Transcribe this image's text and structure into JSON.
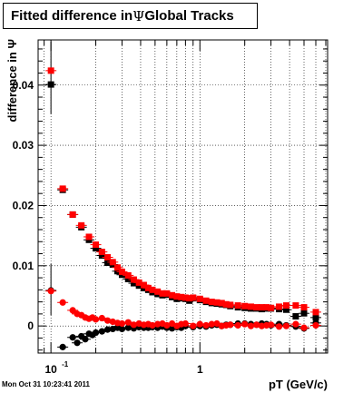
{
  "title": {
    "prefix": "Fitted difference in",
    "symbol": "Ψ",
    "suffix": "Global Tracks"
  },
  "timestamp": "Mon Oct 31 10:23:41 2011",
  "colors": {
    "series_black": "#000000",
    "series_red": "#ff0000",
    "grid": "#000000"
  },
  "chart_data": {
    "type": "scatter",
    "xlabel": "pT (GeV/c)",
    "ylabel": "difference in Ψ",
    "xscale": "log",
    "xlim": [
      0.082,
      7.2
    ],
    "ylim": [
      -0.0045,
      0.0475
    ],
    "grid": true,
    "y_ticks": [
      {
        "value": 0,
        "label": "0"
      },
      {
        "value": 0.01,
        "label": "0.01"
      },
      {
        "value": 0.02,
        "label": "0.02"
      },
      {
        "value": 0.03,
        "label": "0.03"
      },
      {
        "value": 0.04,
        "label": "0.04"
      }
    ],
    "x_ticks": [
      {
        "value": 0.1,
        "label": "10",
        "exponent": "-1"
      },
      {
        "value": 1,
        "label": "1",
        "exponent": ""
      }
    ],
    "series": [
      {
        "marker": "square",
        "color": "#000000",
        "x": [
          0.1,
          0.12,
          0.14,
          0.16,
          0.18,
          0.2,
          0.22,
          0.24,
          0.26,
          0.28,
          0.3,
          0.33,
          0.36,
          0.39,
          0.42,
          0.45,
          0.48,
          0.52,
          0.56,
          0.6,
          0.65,
          0.7,
          0.75,
          0.8,
          0.85,
          0.9,
          1.0,
          1.1,
          1.2,
          1.3,
          1.4,
          1.5,
          1.6,
          1.8,
          2.0,
          2.2,
          2.4,
          2.6,
          2.8,
          3.0,
          3.4,
          3.8,
          4.4,
          5.0,
          6.0
        ],
        "y": [
          0.0401,
          0.0226,
          0.0185,
          0.0164,
          0.0143,
          0.0129,
          0.0117,
          0.0105,
          0.0102,
          0.0091,
          0.0085,
          0.0078,
          0.0071,
          0.0067,
          0.0063,
          0.006,
          0.0056,
          0.0053,
          0.0051,
          0.0052,
          0.0048,
          0.0045,
          0.0046,
          0.0045,
          0.0042,
          0.0046,
          0.0043,
          0.004,
          0.0038,
          0.0037,
          0.0036,
          0.0035,
          0.0033,
          0.0031,
          0.003,
          0.0029,
          0.0029,
          0.0028,
          0.0029,
          0.0029,
          0.0028,
          0.0027,
          0.0016,
          0.0021,
          0.0014
        ]
      },
      {
        "marker": "square",
        "color": "#ff0000",
        "x": [
          0.1,
          0.12,
          0.14,
          0.16,
          0.18,
          0.2,
          0.22,
          0.24,
          0.26,
          0.28,
          0.3,
          0.33,
          0.36,
          0.39,
          0.42,
          0.45,
          0.48,
          0.52,
          0.56,
          0.6,
          0.65,
          0.7,
          0.75,
          0.8,
          0.85,
          0.9,
          1.0,
          1.1,
          1.2,
          1.3,
          1.4,
          1.5,
          1.6,
          1.8,
          2.0,
          2.2,
          2.4,
          2.6,
          2.8,
          3.0,
          3.4,
          3.8,
          4.4,
          5.0,
          6.0
        ],
        "y": [
          0.0424,
          0.0228,
          0.0185,
          0.0167,
          0.0148,
          0.0135,
          0.0123,
          0.0114,
          0.0106,
          0.0097,
          0.009,
          0.0084,
          0.0077,
          0.0072,
          0.0068,
          0.0063,
          0.006,
          0.0057,
          0.0054,
          0.0054,
          0.0051,
          0.0049,
          0.0048,
          0.0047,
          0.0046,
          0.0047,
          0.0045,
          0.0042,
          0.004,
          0.0039,
          0.0038,
          0.0036,
          0.0035,
          0.0034,
          0.0033,
          0.0032,
          0.0031,
          0.0031,
          0.0031,
          0.003,
          0.0032,
          0.0034,
          0.0034,
          0.0031,
          0.0023
        ]
      },
      {
        "marker": "circle",
        "color": "#000000",
        "x": [
          0.1,
          0.12,
          0.14,
          0.15,
          0.16,
          0.17,
          0.18,
          0.19,
          0.2,
          0.22,
          0.24,
          0.26,
          0.28,
          0.3,
          0.33,
          0.36,
          0.39,
          0.42,
          0.45,
          0.48,
          0.52,
          0.56,
          0.6,
          0.65,
          0.7,
          0.75,
          0.8,
          0.9,
          1.0,
          1.1,
          1.2,
          1.3,
          1.4,
          1.5,
          1.6,
          1.8,
          2.0,
          2.2,
          2.4,
          2.6,
          2.8,
          3.0,
          3.4,
          3.8,
          4.4,
          5.0,
          6.0
        ],
        "y": [
          0.0059,
          -0.0035,
          -0.0019,
          -0.0028,
          -0.0017,
          -0.0022,
          -0.0013,
          -0.0015,
          -0.0011,
          -0.0009,
          -0.0006,
          -0.0005,
          -0.0003,
          -0.0005,
          -0.0003,
          -0.0004,
          -0.0002,
          -0.0003,
          -0.0003,
          -0.0002,
          -0.0003,
          -0.0001,
          -0.0003,
          -0.0004,
          -0.0002,
          -0.0003,
          0.0,
          -0.0002,
          0.0,
          -0.0001,
          0.0001,
          0.0002,
          0.0,
          0.0002,
          0.0002,
          0.0004,
          0.0004,
          0.0003,
          0.0002,
          0.0004,
          0.0003,
          0.0001,
          0.0003,
          0.0001,
          -0.0001,
          -0.0004,
          0.0005
        ]
      },
      {
        "marker": "circle",
        "color": "#ff0000",
        "x": [
          0.1,
          0.12,
          0.14,
          0.15,
          0.16,
          0.17,
          0.18,
          0.19,
          0.2,
          0.22,
          0.24,
          0.26,
          0.28,
          0.3,
          0.33,
          0.36,
          0.39,
          0.42,
          0.45,
          0.48,
          0.52,
          0.56,
          0.6,
          0.65,
          0.7,
          0.75,
          0.8,
          0.9,
          1.0,
          1.1,
          1.2,
          1.3,
          1.4,
          1.5,
          1.6,
          1.8,
          2.0,
          2.2,
          2.4,
          2.6,
          2.8,
          3.0,
          3.4,
          3.8,
          4.4,
          5.0,
          6.0
        ],
        "y": [
          0.0058,
          0.0039,
          0.0026,
          0.002,
          0.0018,
          0.0014,
          0.0012,
          0.0014,
          0.0011,
          0.0013,
          0.0009,
          0.0007,
          0.0005,
          0.0004,
          0.0006,
          0.0002,
          0.0004,
          0.0002,
          0.0003,
          0.0001,
          0.0003,
          0.0004,
          0.0001,
          0.0004,
          0.0,
          0.0003,
          0.0004,
          0.0,
          0.0003,
          0.0001,
          0.0003,
          0.0004,
          0.0,
          0.0001,
          0.0002,
          0.0001,
          0.0003,
          0.0,
          0.0002,
          0.0,
          0.0001,
          0.0002,
          -0.0001,
          0.0,
          0.0003,
          -0.0003,
          0.0001
        ]
      }
    ],
    "error_bars": [
      {
        "x": 0.1,
        "y_low": 0.0352,
        "y_high": 0.0472,
        "color": "#000000"
      },
      {
        "x": 0.1,
        "y_low": 0.0018,
        "y_high": 0.0103,
        "color": "#000000"
      },
      {
        "x": 0.12,
        "y_low": 0.0224,
        "y_high": 0.0231,
        "color": "#000000"
      }
    ]
  }
}
